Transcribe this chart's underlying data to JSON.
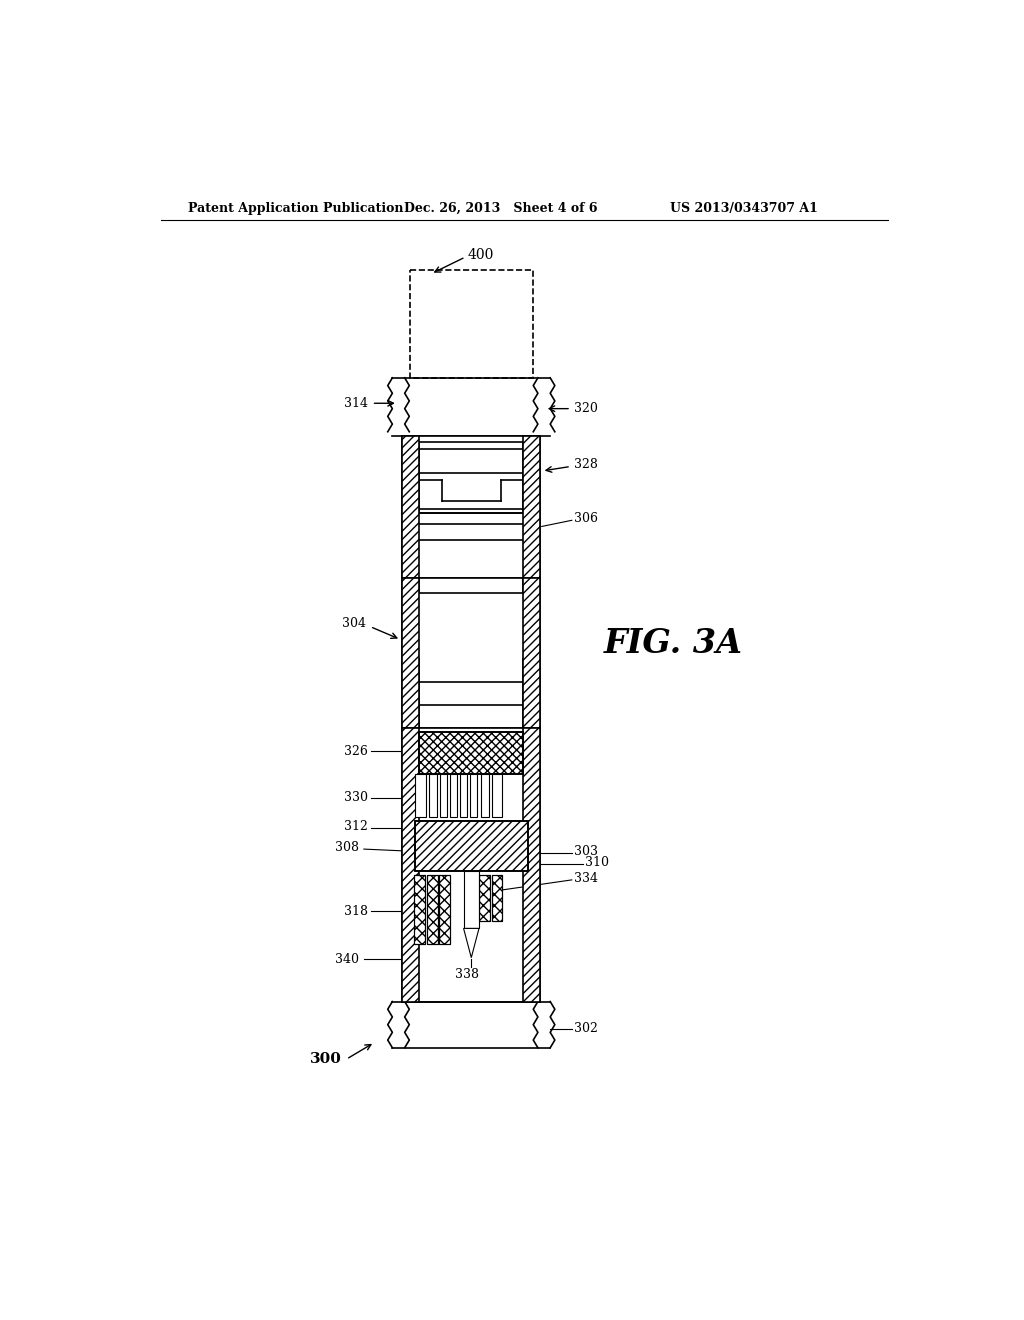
{
  "title_left": "Patent Application Publication",
  "title_center": "Dec. 26, 2013   Sheet 4 of 6",
  "title_right": "US 2013/0343707 A1",
  "fig_label": "FIG. 3A",
  "ref_400": "400",
  "ref_314": "314",
  "ref_320": "320",
  "ref_328": "328",
  "ref_306": "306",
  "ref_304": "304",
  "ref_326": "326",
  "ref_330": "330",
  "ref_312": "312",
  "ref_308": "308",
  "ref_340": "340",
  "ref_318": "318",
  "ref_338": "338",
  "ref_300": "300",
  "ref_302": "302",
  "ref_334": "334",
  "ref_303": "303",
  "ref_310": "310",
  "bg_color": "#ffffff",
  "line_color": "#000000"
}
